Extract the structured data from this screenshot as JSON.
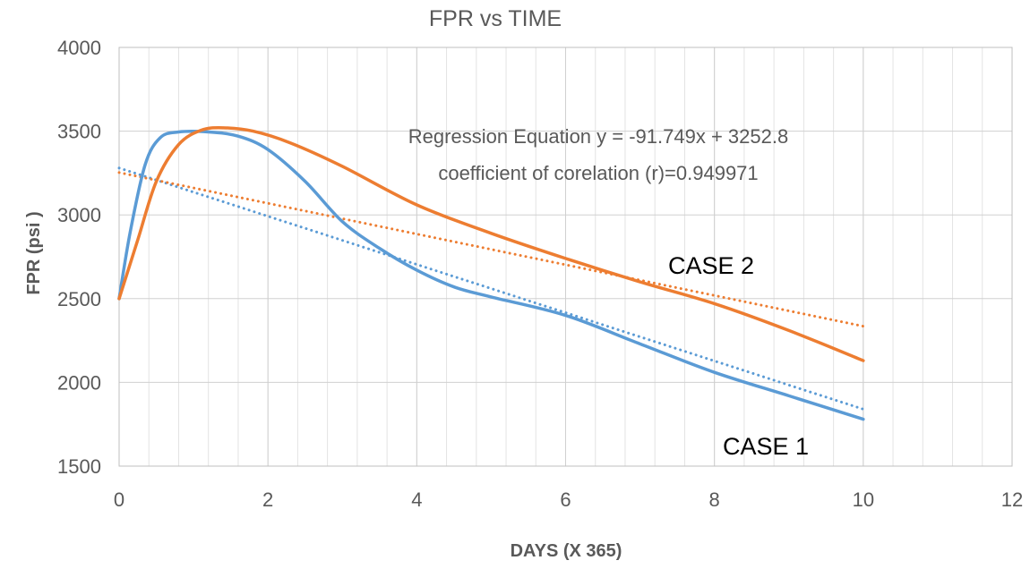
{
  "chart_data": {
    "type": "line",
    "title": "FPR  vs  TIME",
    "xlabel": "DAYS (X 365)",
    "ylabel": "FPR  (psi )",
    "xlim": [
      0,
      12
    ],
    "ylim": [
      1500,
      4000
    ],
    "x_ticks": [
      0,
      2,
      4,
      6,
      8,
      10,
      12
    ],
    "y_ticks": [
      1500,
      2000,
      2500,
      3000,
      3500,
      4000
    ],
    "x_minor_step": 0.4,
    "grid": true,
    "series": [
      {
        "name": "CASE 1",
        "color": "#5B9BD5",
        "style": "solid",
        "x": [
          0,
          0.15,
          0.35,
          0.55,
          0.8,
          1.2,
          1.6,
          2.0,
          2.5,
          3.0,
          3.5,
          4.0,
          4.5,
          5.0,
          6.0,
          7.0,
          8.0,
          9.0,
          10.0
        ],
        "y": [
          2500,
          2900,
          3300,
          3460,
          3495,
          3495,
          3470,
          3390,
          3200,
          2960,
          2800,
          2670,
          2570,
          2510,
          2400,
          2230,
          2060,
          1920,
          1780
        ]
      },
      {
        "name": "CASE 2",
        "color": "#ED7D31",
        "style": "solid",
        "x": [
          0,
          0.25,
          0.5,
          0.8,
          1.1,
          1.4,
          1.8,
          2.3,
          3.0,
          4.0,
          5.0,
          6.0,
          7.0,
          8.0,
          9.0,
          10.0
        ],
        "y": [
          2500,
          2850,
          3200,
          3420,
          3505,
          3520,
          3500,
          3430,
          3290,
          3060,
          2890,
          2740,
          2600,
          2470,
          2310,
          2130
        ]
      },
      {
        "name": "CASE 1 trendline",
        "color": "#5B9BD5",
        "style": "dotted",
        "x": [
          0,
          10
        ],
        "y": [
          3280,
          1840
        ]
      },
      {
        "name": "CASE 2 trendline",
        "color": "#ED7D31",
        "style": "dotted",
        "x": [
          0,
          10
        ],
        "y": [
          3252.8,
          2335.3
        ]
      }
    ],
    "annotations": {
      "equation": "Regression Equation y = -91.749x + 3252.8",
      "correlation": "coefficient of corelation (r)=0.949971",
      "case1_label": "CASE 1",
      "case2_label": "CASE 2"
    }
  }
}
